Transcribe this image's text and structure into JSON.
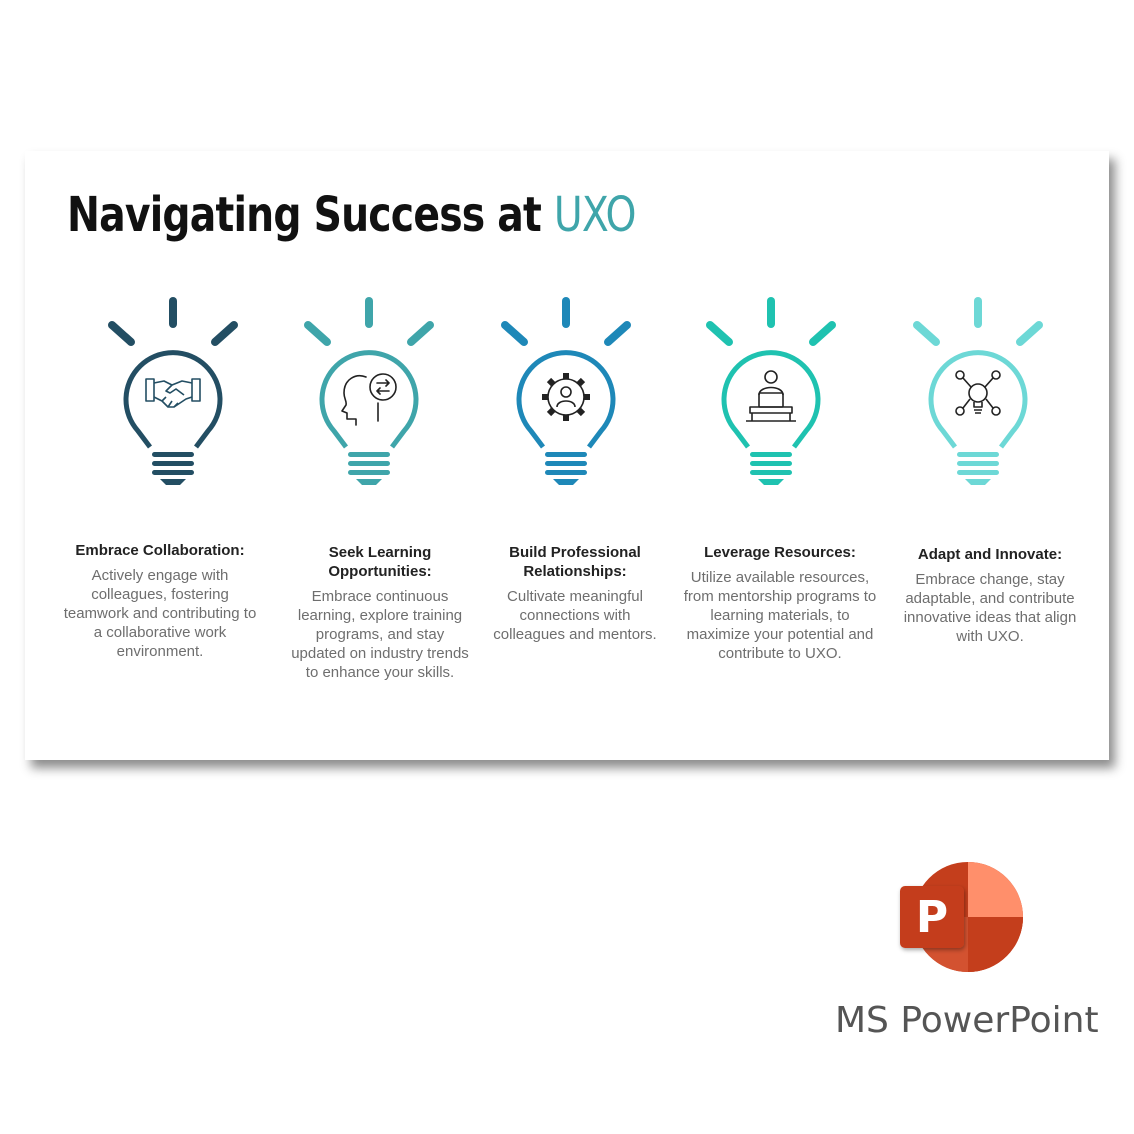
{
  "slide": {
    "title_main": "Navigating Success at ",
    "title_accent": "UXO",
    "accent_color": "#3fa5aa"
  },
  "items": [
    {
      "title": "Embrace Collaboration:",
      "body": "Actively engage with colleagues, fostering teamwork and contributing to a collaborative work environment.",
      "icon": "handshake-icon",
      "color": "#234e63"
    },
    {
      "title": "Seek Learning Opportunities:",
      "body": "Embrace continuous learning, explore training programs, and stay updated on industry trends to enhance your skills.",
      "icon": "head-exchange-icon",
      "color": "#3fa5aa"
    },
    {
      "title": "Build Professional Relationships:",
      "body": "Cultivate meaningful connections with colleagues and mentors.",
      "icon": "gear-person-icon",
      "color": "#1e88b8"
    },
    {
      "title": "Leverage Resources:",
      "body": "Utilize available resources, from mentorship programs to learning materials, to maximize your potential and contribute to UXO.",
      "icon": "person-laptop-icon",
      "color": "#1fc2b0"
    },
    {
      "title": "Adapt and Innovate:",
      "body": "Embrace change, stay adaptable, and contribute innovative ideas that align with UXO.",
      "icon": "bulb-network-icon",
      "color": "#6dd8d6"
    }
  ],
  "branding": {
    "app_name": "MS PowerPoint",
    "logo_letter": "P",
    "logo_icon": "powerpoint-logo-icon"
  }
}
